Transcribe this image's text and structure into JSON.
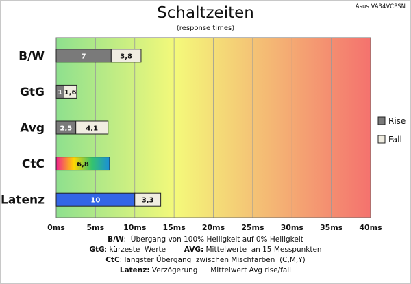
{
  "chart_data": {
    "type": "bar",
    "title": "Schaltzeiten",
    "subtitle": "(response times)",
    "model": "Asus VA34VCPSN",
    "categories": [
      "B/W",
      "GtG",
      "Avg",
      "CtC",
      "Latenz"
    ],
    "series": [
      {
        "name": "Rise",
        "values": [
          7,
          1,
          2.5,
          6.8,
          10
        ],
        "labels": [
          "7",
          "1",
          "2,5",
          "6,8",
          "10"
        ]
      },
      {
        "name": "Fall",
        "values": [
          3.8,
          1.6,
          4.1,
          null,
          3.3
        ],
        "labels": [
          "3,8",
          "1,6",
          "4,1",
          "",
          "3,3"
        ]
      }
    ],
    "stacked": true,
    "orientation": "horizontal",
    "xlim": [
      0,
      40
    ],
    "x_ticks": [
      "0ms",
      "5ms",
      "10ms",
      "15ms",
      "20ms",
      "25ms",
      "30ms",
      "35ms",
      "40ms"
    ],
    "x_tick_values": [
      0,
      5,
      10,
      15,
      20,
      25,
      30,
      35,
      40
    ],
    "grid": true,
    "legend_position": "right",
    "background_gradient": [
      "#8ee08e",
      "#f4f97a",
      "#f4726e"
    ],
    "colors": {
      "rise_default": "#7a7a7a",
      "fall": "#f0ede1",
      "latenz_rise": "#3366e6",
      "ctc_gradient": [
        "#f0208c",
        "#ffd600",
        "#35c46d",
        "#1a8fd8"
      ]
    }
  },
  "footer": {
    "line1_key": "B/W",
    "line1_text": ":  Übergang von 100% Helligkeit auf 0% Helligkeit",
    "line2_key1": "GtG",
    "line2_text1": ": kürzeste  Werte        ",
    "line2_key2": "AVG:",
    "line2_text2": " Mittelwerte  an 15 Messpunkten",
    "line3_key": "CtC",
    "line3_text": ": längster Übergang  zwischen Mischfarben  (C,M,Y)",
    "line4_key": "Latenz:",
    "line4_text": " Verzögerung  + Mittelwert Avg rise/fall"
  }
}
